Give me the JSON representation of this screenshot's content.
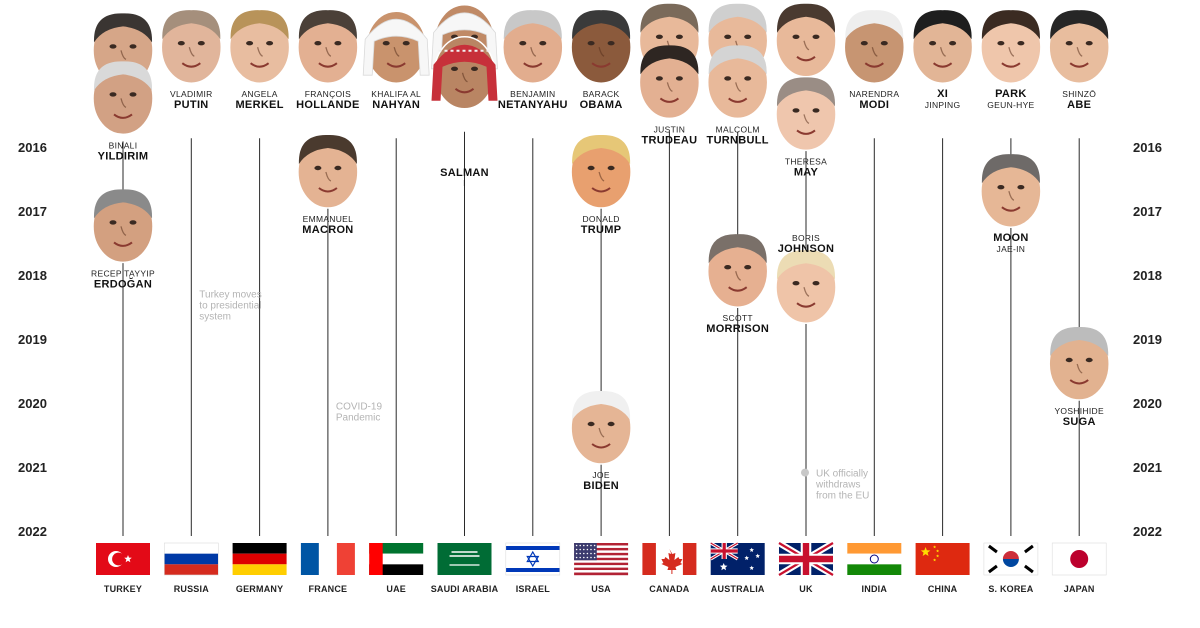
{
  "years": [
    "2016",
    "2017",
    "2018",
    "2019",
    "2020",
    "2021",
    "2022"
  ],
  "countries": [
    {
      "id": "turkey",
      "name": "TURKEY",
      "flag": "turkey",
      "leaders": [
        {
          "first": "",
          "last": "",
          "year": 2015.6,
          "skin": "#d6a688",
          "hair": "#3a3532"
        },
        {
          "first": "BINALI",
          "last": "YILDIRIM",
          "year": 2016.35,
          "skin": "#d2a184",
          "hair": "#d9d9d9"
        },
        {
          "first": "RECEP TAYYIP",
          "last": "ERDOĞAN",
          "year": 2018.35,
          "skin": "#d3a080",
          "hair": "#8a8a8a"
        }
      ]
    },
    {
      "id": "russia",
      "name": "RUSSIA",
      "flag": "russia",
      "leaders": [
        {
          "first": "VLADIMIR",
          "last": "PUTIN",
          "year": 2015.55,
          "skin": "#e1b59b",
          "hair": "#a58f7c"
        }
      ]
    },
    {
      "id": "germany",
      "name": "GERMANY",
      "flag": "germany",
      "leaders": [
        {
          "first": "ANGELA",
          "last": "MERKEL",
          "year": 2015.55,
          "skin": "#e8bda0",
          "hair": "#b8935a"
        }
      ]
    },
    {
      "id": "france",
      "name": "FRANCE",
      "flag": "france",
      "leaders": [
        {
          "first": "FRANÇOIS",
          "last": "HOLLANDE",
          "year": 2015.55,
          "skin": "#e3b092",
          "hair": "#4b4038"
        },
        {
          "first": "EMMANUEL",
          "last": "MACRON",
          "year": 2017.5,
          "skin": "#e4b393",
          "hair": "#4a3a2e"
        }
      ]
    },
    {
      "id": "uae",
      "name": "UAE",
      "flag": "uae",
      "leaders": [
        {
          "first": "KHALIFA AL",
          "last": "NAHYAN",
          "year": 2015.55,
          "skin": "#c9936d",
          "hair": "#ffffff"
        }
      ]
    },
    {
      "id": "saudi",
      "name": "SAUDI ARABIA",
      "flag": "saudi",
      "leaders": [
        {
          "first": "",
          "last": "",
          "year": 2015.45,
          "skin": "#c08a66",
          "hair": "#ffffff"
        },
        {
          "first": "",
          "last": "SALMAN",
          "year": 2015.95,
          "skin": "#b98563",
          "hair": "#c7303a",
          "label_first_under": "I"
        }
      ]
    },
    {
      "id": "israel",
      "name": "ISRAEL",
      "flag": "israel",
      "leaders": [
        {
          "first": "BENJAMIN",
          "last": "NETANYAHU",
          "year": 2015.55,
          "skin": "#e2ad8e",
          "hair": "#c8c8c8"
        }
      ]
    },
    {
      "id": "usa",
      "name": "USA",
      "flag": "usa",
      "leaders": [
        {
          "first": "BARACK",
          "last": "OBAMA",
          "year": 2015.55,
          "skin": "#8b5a3c",
          "hair": "#3a3a3a"
        },
        {
          "first": "DONALD",
          "last": "TRUMP",
          "year": 2017.5,
          "skin": "#e8a06f",
          "hair": "#e6c777"
        },
        {
          "first": "JOE",
          "last": "BIDEN",
          "year": 2021.5,
          "skin": "#e5b595",
          "hair": "#f0f0f0"
        }
      ]
    },
    {
      "id": "canada",
      "name": "CANADA",
      "flag": "canada",
      "leaders": [
        {
          "first": "",
          "last": "",
          "year": 2015.45,
          "skin": "#e8b99a",
          "hair": "#7a6a5a"
        },
        {
          "first": "JUSTIN",
          "last": "TRUDEAU",
          "year": 2016.1,
          "skin": "#e3b092",
          "hair": "#2e2622"
        }
      ]
    },
    {
      "id": "australia",
      "name": "AUSTRALIA",
      "flag": "australia",
      "leaders": [
        {
          "first": "",
          "last": "",
          "year": 2015.45,
          "skin": "#e8b99a",
          "hair": "#cfcfcf"
        },
        {
          "first": "MALCOLM",
          "last": "TURNBULL",
          "year": 2016.1,
          "skin": "#e8b99a",
          "hair": "#d4d4d4"
        },
        {
          "first": "SCOTT",
          "last": "MORRISON",
          "year": 2019.05,
          "skin": "#e6b091",
          "hair": "#7a7069"
        }
      ]
    },
    {
      "id": "uk",
      "name": "UK",
      "flag": "uk",
      "leaders": [
        {
          "first": "",
          "last": "",
          "year": 2015.45,
          "skin": "#e8b99a",
          "hair": "#4a3a30"
        },
        {
          "first": "THERESA",
          "last": "MAY",
          "year": 2016.6,
          "skin": "#efc6ad",
          "hair": "#9a8d85"
        },
        {
          "first": "BORIS",
          "last": "JOHNSON",
          "year": 2019.3,
          "skin": "#efc4a8",
          "hair": "#ecdcb4",
          "label_above": true
        }
      ]
    },
    {
      "id": "india",
      "name": "INDIA",
      "flag": "india",
      "leaders": [
        {
          "first": "NARENDRA",
          "last": "MODI",
          "year": 2015.55,
          "skin": "#c79572",
          "hair": "#eeeeee"
        }
      ]
    },
    {
      "id": "china",
      "name": "CHINA",
      "flag": "china",
      "leaders": [
        {
          "first": "XI",
          "last": "JINPING",
          "year": 2015.55,
          "skin": "#e2b596",
          "hair": "#1e1e1e",
          "swap": true
        }
      ]
    },
    {
      "id": "skorea",
      "name": "S. KOREA",
      "flag": "skorea",
      "leaders": [
        {
          "first": "PARK",
          "last": "GEUN-HYE",
          "year": 2015.55,
          "skin": "#efc6ab",
          "hair": "#3b2b22",
          "swap": true
        },
        {
          "first": "MOON",
          "last": "JAE-IN",
          "year": 2017.8,
          "skin": "#e6b796",
          "hair": "#6e6a68",
          "swap": true
        }
      ]
    },
    {
      "id": "japan",
      "name": "JAPAN",
      "flag": "japan",
      "leaders": [
        {
          "first": "SHINZŌ",
          "last": "ABE",
          "year": 2015.55,
          "skin": "#e8bd9e",
          "hair": "#262626"
        },
        {
          "first": "YOSHIHIDE",
          "last": "SUGA",
          "year": 2020.5,
          "skin": "#e2b290",
          "hair": "#bcbcbc"
        }
      ]
    }
  ],
  "annotations": [
    {
      "country": "russia",
      "year": 2018.35,
      "lines": [
        "Turkey moves",
        "to presidential",
        "system"
      ]
    },
    {
      "country": "france",
      "year": 2020.1,
      "lines": [
        "COVID-19",
        "Pandemic"
      ]
    },
    {
      "country": "uk",
      "year": 2021.15,
      "lines": [
        "UK officially",
        "withdraws",
        "from the EU"
      ],
      "dot": true
    }
  ]
}
